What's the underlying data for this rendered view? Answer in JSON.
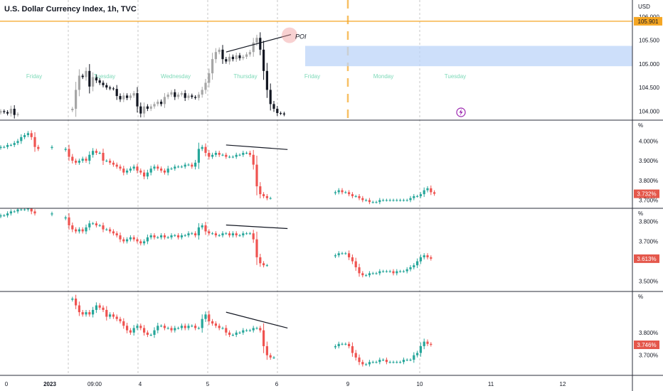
{
  "header": {
    "title": "U.S. Dollar Currency Index, 1h, TVC"
  },
  "colors": {
    "up": "#26a69a",
    "down": "#ef5350",
    "price_up": "#a6a6a6",
    "price_down": "#131722",
    "hline": "#f5a623",
    "zone": "#bcd4f8",
    "axis_tag": "#f5a623",
    "pct_tag": "#e4574b",
    "day_label": "#7dd9b8",
    "grid": "#c7c7c7"
  },
  "x_axis": {
    "ticks": [
      "0",
      "2023",
      "09:00",
      "4",
      "5",
      "6",
      "9",
      "10",
      "11",
      "12"
    ]
  },
  "annotations": {
    "poi": "POI",
    "day_labels": [
      "Friday",
      "Tuesday",
      "Wednesday",
      "Thursday",
      "Friday",
      "Monday",
      "Tuesday"
    ]
  },
  "chart_data": [
    {
      "type": "candlestick",
      "title": "U.S. Dollar Currency Index, 1h, TVC",
      "unit": "USD",
      "ylim": [
        103.9,
        106.2
      ],
      "yticks": [
        "106.000",
        "105.500",
        "105.000",
        "104.500",
        "104.000"
      ],
      "hline": {
        "value": 105.901,
        "label": "105.901"
      },
      "zone": [
        104.95,
        105.38
      ],
      "series_segments": [
        {
          "start": 0,
          "values": [
            104.0,
            103.98,
            103.95,
            104.05,
            103.92,
            103.94
          ]
        },
        {
          "start": 21,
          "values": [
            104.05,
            104.45,
            104.75,
            104.72,
            104.85,
            104.52,
            104.72,
            104.65,
            104.6,
            104.55,
            104.5,
            104.48,
            104.47,
            104.32,
            104.25,
            104.33,
            104.28,
            104.33,
            104.38,
            104.1,
            103.95,
            104.1,
            104.05,
            104.1,
            104.15,
            104.2,
            104.15,
            104.3,
            104.35,
            104.4,
            104.3,
            104.35,
            104.38,
            104.28,
            104.33,
            104.3,
            104.28,
            104.35,
            104.45,
            104.6,
            104.8,
            105.1,
            105.25,
            105.3,
            105.1,
            105.05,
            105.15,
            105.1,
            105.18,
            105.12,
            105.15,
            105.2,
            105.25,
            105.45,
            105.55,
            105.3,
            104.85,
            104.45,
            104.15,
            104.05,
            103.96,
            103.95,
            103.93
          ]
        }
      ],
      "trendline": {
        "from": [
          66,
          105.25
        ],
        "to": [
          85,
          105.62
        ]
      },
      "x_labels": [
        "0",
        "2023",
        "09:00",
        "4",
        "5",
        "6",
        "9",
        "10",
        "11",
        "12"
      ]
    },
    {
      "type": "candlestick",
      "unit": "%",
      "ylim": [
        3.68,
        4.07
      ],
      "yticks": [
        "4.000%",
        "3.900%",
        "3.800%",
        "3.700%"
      ],
      "last": {
        "value": 3.732,
        "label": "3.732%"
      },
      "series_segments": [
        {
          "start": 0,
          "values": [
            3.97,
            3.97,
            3.98,
            3.98,
            3.99,
            4.0,
            4.02,
            4.03,
            4.04,
            4.02,
            3.97,
            3.96
          ]
        },
        {
          "start": 15,
          "values": [
            3.97
          ]
        },
        {
          "start": 19,
          "values": [
            3.96,
            3.92,
            3.9,
            3.89,
            3.9,
            3.91,
            3.9,
            3.93,
            3.95,
            3.94,
            3.94,
            3.9,
            3.9,
            3.89,
            3.88,
            3.87,
            3.86,
            3.84,
            3.85,
            3.86,
            3.87,
            3.85,
            3.84,
            3.82,
            3.84,
            3.86,
            3.87,
            3.86,
            3.85,
            3.84,
            3.86,
            3.86,
            3.87,
            3.87,
            3.87,
            3.88,
            3.88,
            3.87,
            3.89,
            3.96,
            3.97,
            3.94,
            3.92,
            3.93,
            3.94,
            3.93,
            3.93,
            3.92,
            3.92,
            3.92,
            3.93,
            3.93,
            3.94,
            3.94,
            3.93,
            3.88,
            3.77,
            3.73,
            3.72,
            3.71,
            3.71
          ]
        },
        {
          "start": 98,
          "values": [
            3.74,
            3.75,
            3.74,
            3.74,
            3.73,
            3.72,
            3.72,
            3.71,
            3.7,
            3.7,
            3.69,
            3.69,
            3.69,
            3.7,
            3.7,
            3.7,
            3.7,
            3.7,
            3.7,
            3.7,
            3.7,
            3.7,
            3.71,
            3.72,
            3.72,
            3.73,
            3.75,
            3.76,
            3.74,
            3.732
          ]
        }
      ],
      "trendline": {
        "from": [
          66,
          3.98
        ],
        "to": [
          84,
          3.957
        ]
      }
    },
    {
      "type": "candlestick",
      "unit": "%",
      "ylim": [
        3.47,
        3.83
      ],
      "yticks": [
        "3.800%",
        "3.700%",
        "3.500%"
      ],
      "last": {
        "value": 3.613,
        "label": "3.613%"
      },
      "series_segments": [
        {
          "start": 0,
          "values": [
            3.83,
            3.83,
            3.84,
            3.85,
            3.85,
            3.86,
            3.86,
            3.86,
            3.87,
            3.85,
            3.84
          ]
        },
        {
          "start": 15,
          "values": [
            3.84
          ]
        },
        {
          "start": 19,
          "values": [
            3.82,
            3.78,
            3.76,
            3.75,
            3.76,
            3.75,
            3.77,
            3.79,
            3.79,
            3.78,
            3.78,
            3.76,
            3.76,
            3.75,
            3.74,
            3.73,
            3.71,
            3.7,
            3.71,
            3.72,
            3.71,
            3.7,
            3.69,
            3.7,
            3.72,
            3.73,
            3.72,
            3.72,
            3.73,
            3.72,
            3.72,
            3.73,
            3.73,
            3.72,
            3.73,
            3.73,
            3.74,
            3.74,
            3.73,
            3.77,
            3.78,
            3.75,
            3.74,
            3.74,
            3.73,
            3.73,
            3.74,
            3.74,
            3.73,
            3.74,
            3.73,
            3.73,
            3.74,
            3.74,
            3.74,
            3.71,
            3.62,
            3.59,
            3.58,
            3.58
          ]
        },
        {
          "start": 98,
          "values": [
            3.63,
            3.64,
            3.64,
            3.64,
            3.62,
            3.6,
            3.57,
            3.54,
            3.53,
            3.53,
            3.54,
            3.54,
            3.54,
            3.55,
            3.55,
            3.55,
            3.55,
            3.54,
            3.55,
            3.55,
            3.55,
            3.56,
            3.57,
            3.58,
            3.6,
            3.62,
            3.63,
            3.62,
            3.613
          ]
        }
      ],
      "trendline": {
        "from": [
          66,
          3.782
        ],
        "to": [
          84,
          3.764
        ]
      }
    },
    {
      "type": "candlestick",
      "unit": "%",
      "ylim": [
        3.63,
        3.95
      ],
      "yticks": [
        "3.800%",
        "3.700%"
      ],
      "last": {
        "value": 3.746,
        "label": "3.746%"
      },
      "series_segments": [
        {
          "start": 21,
          "values": [
            3.95,
            3.92,
            3.89,
            3.88,
            3.89,
            3.88,
            3.9,
            3.92,
            3.91,
            3.9,
            3.87,
            3.88,
            3.87,
            3.86,
            3.85,
            3.83,
            3.81,
            3.8,
            3.82,
            3.83,
            3.82,
            3.8,
            3.79,
            3.79,
            3.81,
            3.83,
            3.83,
            3.82,
            3.82,
            3.81,
            3.82,
            3.82,
            3.83,
            3.82,
            3.83,
            3.83,
            3.82,
            3.82,
            3.86,
            3.88,
            3.85,
            3.84,
            3.83,
            3.82,
            3.82,
            3.8,
            3.79,
            3.79,
            3.8,
            3.8,
            3.81,
            3.81,
            3.81,
            3.82,
            3.82,
            3.81,
            3.74,
            3.7,
            3.69,
            3.69
          ]
        },
        {
          "start": 98,
          "values": [
            3.74,
            3.75,
            3.75,
            3.75,
            3.74,
            3.71,
            3.69,
            3.67,
            3.66,
            3.66,
            3.67,
            3.67,
            3.67,
            3.68,
            3.68,
            3.67,
            3.67,
            3.67,
            3.67,
            3.67,
            3.68,
            3.68,
            3.68,
            3.7,
            3.71,
            3.74,
            3.76,
            3.75,
            3.746
          ]
        }
      ],
      "trendline": {
        "from": [
          66,
          3.89
        ],
        "to": [
          84,
          3.82
        ]
      }
    }
  ]
}
